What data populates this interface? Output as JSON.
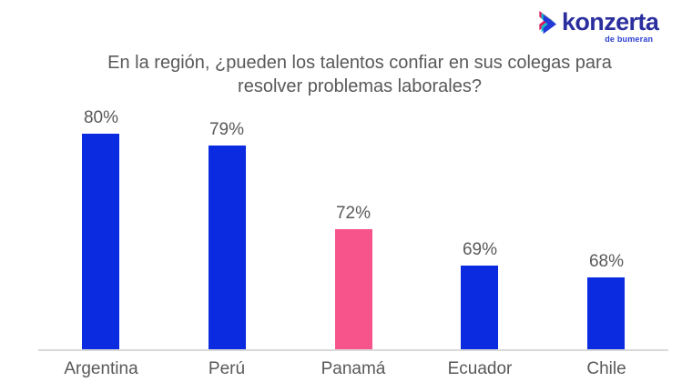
{
  "logo": {
    "brand": "konzerta",
    "subtitle": "de bumeran",
    "brand_color": "#2B2F9E",
    "subtitle_color": "#2B3FD0",
    "chevron_colors": {
      "pink": "#E0195E",
      "teal": "#14C3C9",
      "blue": "#2438D8"
    }
  },
  "title_lines": [
    "En la región, ¿pueden los talentos confiar en sus colegas para",
    "resolver problemas laborales?"
  ],
  "chart_data": {
    "type": "bar",
    "title": "En la región, ¿pueden los talentos confiar en sus colegas para resolver problemas laborales?",
    "categories": [
      "Argentina",
      "Perú",
      "Panamá",
      "Ecuador",
      "Chile"
    ],
    "values": [
      80,
      79,
      72,
      69,
      68
    ],
    "value_labels": [
      "80%",
      "79%",
      "72%",
      "69%",
      "68%"
    ],
    "bar_colors": [
      "#0B2BE0",
      "#0B2BE0",
      "#F8548C",
      "#0B2BE0",
      "#0B2BE0"
    ],
    "highlight_category": "Panamá",
    "xlabel": "",
    "ylabel": "",
    "ylim": [
      62,
      82
    ],
    "grid": false,
    "legend": false,
    "axis_line_color": "#D9D9D9",
    "label_color": "#595959"
  }
}
